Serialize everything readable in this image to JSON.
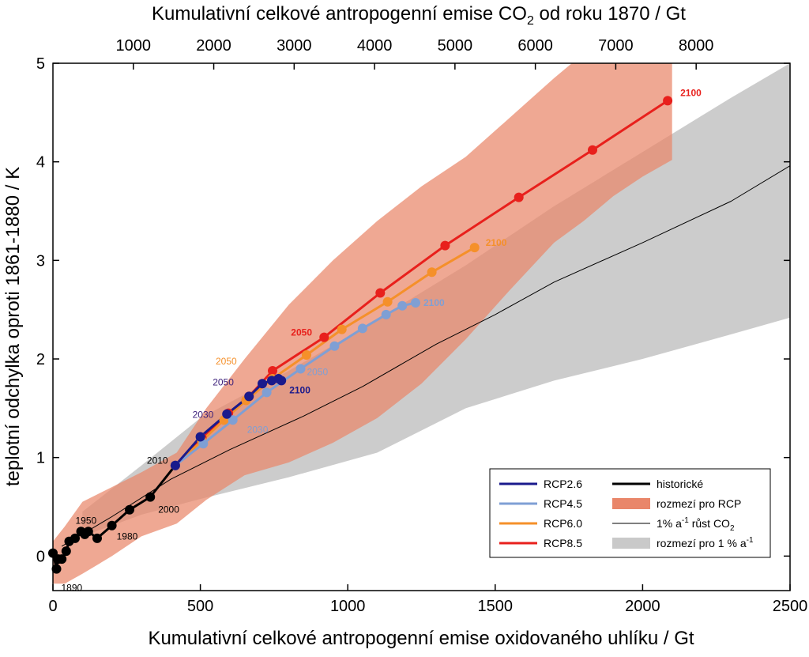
{
  "chart_data": {
    "type": "line",
    "xlabel": "Kumulativní celkové antropogenní emise oxidovaného uhlíku  /  Gt",
    "x2label_main": "Kumulativní celkové antropogenní emise CO",
    "x2label_sub": "2",
    "x2label_tail": " od roku 1870  /  Gt",
    "ylabel": "teplotní odchylka oproti 1861-1880  /  K",
    "xlim": [
      0,
      2500
    ],
    "ylim": [
      -0.35,
      5
    ],
    "x_ticks": [
      "0",
      "500",
      "1000",
      "1500",
      "2000",
      "2500"
    ],
    "x_tick_values": [
      0,
      500,
      1000,
      1500,
      2000,
      2500
    ],
    "y_ticks": [
      "0",
      "1",
      "2",
      "3",
      "4",
      "5"
    ],
    "y_tick_values": [
      0,
      1,
      2,
      3,
      4,
      5
    ],
    "x2_ticks": [
      "1000",
      "2000",
      "3000",
      "4000",
      "5000",
      "6000",
      "7000",
      "8000"
    ],
    "x2_tick_values": [
      1000,
      2000,
      3000,
      4000,
      5000,
      6000,
      7000,
      8000
    ],
    "x2_scale_co2_per_c": 3.667,
    "grid": false,
    "legend_position": "bottom-right",
    "legend": [
      {
        "label": "RCP2.6",
        "kind": "line",
        "color": "#1a1a8c"
      },
      {
        "label": "RCP4.5",
        "kind": "line",
        "color": "#7f9fd4"
      },
      {
        "label": "RCP6.0",
        "kind": "line",
        "color": "#f5902a"
      },
      {
        "label": "RCP8.5",
        "kind": "line",
        "color": "#e8201c"
      },
      {
        "label": "historické",
        "kind": "line",
        "color": "#000000"
      },
      {
        "label": "rozmezí pro RCP",
        "kind": "patch",
        "color": "#e9866a"
      },
      {
        "label": "1% a",
        "sup": "-1",
        "label_tail": " růst CO",
        "sub": "2",
        "kind": "thin-line",
        "color": "#000000"
      },
      {
        "label": "rozmezí pro 1 % a",
        "sup": "-1",
        "kind": "patch",
        "color": "#c9c9c9"
      }
    ],
    "series": [
      {
        "name": "historické",
        "color": "#000000",
        "x": [
          0,
          12,
          18,
          30,
          45,
          55,
          75,
          95,
          108,
          120,
          150,
          200,
          260,
          330,
          415
        ],
        "y": [
          0.03,
          -0.13,
          -0.03,
          -0.03,
          0.05,
          0.15,
          0.18,
          0.25,
          0.22,
          0.25,
          0.18,
          0.31,
          0.47,
          0.6,
          0.92
        ]
      },
      {
        "name": "RCP8.5",
        "color": "#e8201c",
        "x": [
          415,
          505,
          595,
          665,
          745,
          920,
          1110,
          1330,
          1580,
          1830,
          2085
        ],
        "y": [
          0.92,
          1.2,
          1.45,
          1.62,
          1.88,
          2.22,
          2.67,
          3.15,
          3.64,
          4.12,
          4.62
        ]
      },
      {
        "name": "RCP6.0",
        "color": "#f5902a",
        "x": [
          415,
          505,
          580,
          655,
          745,
          860,
          980,
          1135,
          1285,
          1430
        ],
        "y": [
          0.92,
          1.17,
          1.38,
          1.58,
          1.8,
          2.04,
          2.3,
          2.58,
          2.88,
          3.13
        ]
      },
      {
        "name": "RCP4.5",
        "color": "#7f9fd4",
        "x": [
          415,
          510,
          610,
          725,
          840,
          955,
          1050,
          1130,
          1185,
          1230
        ],
        "y": [
          0.92,
          1.14,
          1.38,
          1.66,
          1.9,
          2.13,
          2.31,
          2.45,
          2.54,
          2.57
        ]
      },
      {
        "name": "RCP2.6",
        "color": "#1a1a8c",
        "x": [
          415,
          500,
          590,
          665,
          710,
          742,
          765,
          775
        ],
        "y": [
          0.92,
          1.21,
          1.44,
          1.62,
          1.75,
          1.78,
          1.8,
          1.78
        ]
      },
      {
        "name": "1% a-1 růst CO2",
        "color": "#000000",
        "x": [
          30,
          200,
          400,
          600,
          850,
          1050,
          1300,
          1500,
          1700,
          2000,
          2300,
          2500
        ],
        "y": [
          0.1,
          0.4,
          0.78,
          1.08,
          1.42,
          1.72,
          2.15,
          2.45,
          2.78,
          3.18,
          3.6,
          3.96
        ]
      }
    ],
    "bands": [
      {
        "name": "rozmezí pro 1 % a-1",
        "color": "#c9c9c9",
        "x": [
          100,
          300,
          500,
          800,
          1100,
          1400,
          1700,
          2000,
          2300,
          2500
        ],
        "lower": [
          0.2,
          0.42,
          0.58,
          0.8,
          1.05,
          1.5,
          1.78,
          2.0,
          2.25,
          2.42
        ],
        "upper": [
          0.45,
          0.92,
          1.4,
          1.88,
          2.4,
          2.95,
          3.55,
          4.1,
          4.65,
          5.0
        ]
      },
      {
        "name": "rozmezí pro RCP",
        "color": "#e9866a",
        "x": [
          0,
          40,
          100,
          200,
          300,
          420,
          520,
          650,
          800,
          950,
          1100,
          1250,
          1400,
          1550,
          1700,
          1800,
          1900,
          2000,
          2100
        ],
        "lower": [
          -0.28,
          -0.28,
          -0.18,
          0.0,
          0.2,
          0.33,
          0.57,
          0.82,
          0.95,
          1.15,
          1.4,
          1.75,
          2.2,
          2.7,
          3.18,
          3.4,
          3.65,
          3.85,
          4.02
        ],
        "upper": [
          0.15,
          0.3,
          0.55,
          0.7,
          0.85,
          1.05,
          1.5,
          2.0,
          2.55,
          3.0,
          3.4,
          3.75,
          4.05,
          4.45,
          4.85,
          5.1,
          5.3,
          5.45,
          5.6
        ]
      }
    ],
    "annotations": [
      {
        "text": "1890",
        "x": 12,
        "y": -0.13,
        "dx": 6,
        "dy": 28,
        "color": "#000000",
        "bold": false
      },
      {
        "text": "1950",
        "x": 55,
        "y": 0.15,
        "dx": 8,
        "dy": -22,
        "color": "#000000",
        "bold": false
      },
      {
        "text": "1980",
        "x": 200,
        "y": 0.31,
        "dx": 6,
        "dy": 18,
        "color": "#000000",
        "bold": false
      },
      {
        "text": "2000",
        "x": 330,
        "y": 0.6,
        "dx": 10,
        "dy": 20,
        "color": "#000000",
        "bold": false
      },
      {
        "text": "2010",
        "x": 415,
        "y": 0.92,
        "dx": -36,
        "dy": -2,
        "color": "#000000",
        "bold": false
      },
      {
        "text": "2030",
        "x": 500,
        "y": 1.21,
        "dx": -10,
        "dy": -24,
        "color": "#3b1f7a",
        "bold": false
      },
      {
        "text": "2030",
        "x": 610,
        "y": 1.38,
        "dx": 18,
        "dy": 16,
        "color": "#7f9fd4",
        "bold": false
      },
      {
        "text": "2050",
        "x": 665,
        "y": 1.62,
        "dx": -46,
        "dy": -14,
        "color": "#3b1f7a",
        "bold": false
      },
      {
        "text": "2050",
        "x": 745,
        "y": 1.8,
        "dx": -72,
        "dy": -18,
        "color": "#f5902a",
        "bold": false
      },
      {
        "text": "2050",
        "x": 840,
        "y": 1.9,
        "dx": 8,
        "dy": 8,
        "color": "#7f9fd4",
        "bold": false
      },
      {
        "text": "2050",
        "x": 920,
        "y": 2.22,
        "dx": -42,
        "dy": -2,
        "color": "#e8201c",
        "bold": true
      },
      {
        "text": "2100",
        "x": 775,
        "y": 1.78,
        "dx": 10,
        "dy": 16,
        "color": "#1a1a8c",
        "bold": true
      },
      {
        "text": "2100",
        "x": 1230,
        "y": 2.57,
        "dx": 10,
        "dy": 4,
        "color": "#7f9fd4",
        "bold": true
      },
      {
        "text": "2100",
        "x": 1430,
        "y": 3.13,
        "dx": 14,
        "dy": -2,
        "color": "#f5902a",
        "bold": true
      },
      {
        "text": "2100",
        "x": 2085,
        "y": 4.62,
        "dx": 16,
        "dy": -6,
        "color": "#e8201c",
        "bold": true
      }
    ]
  }
}
